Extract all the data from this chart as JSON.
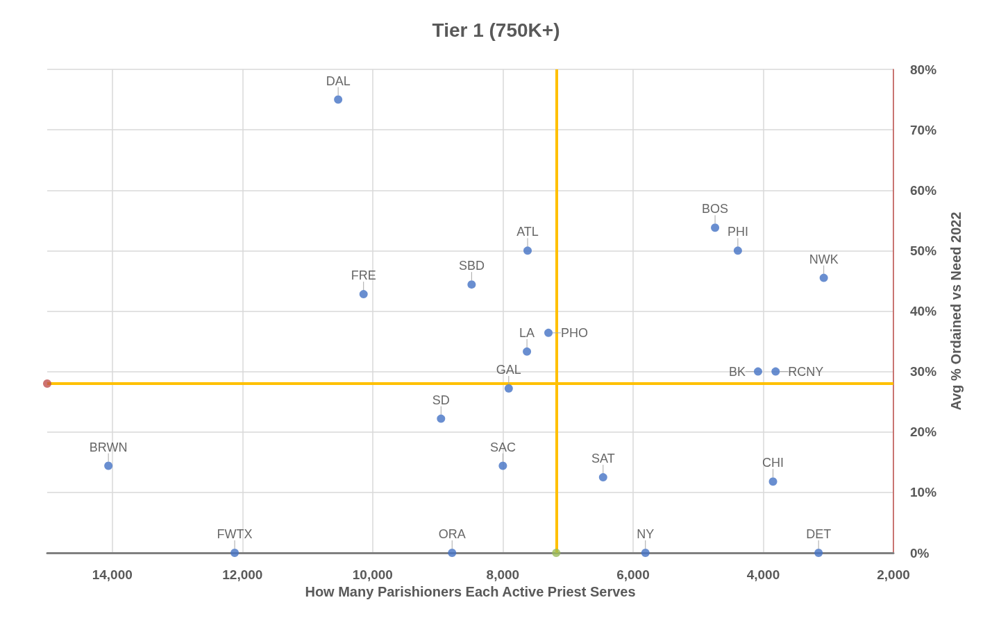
{
  "chart_data": {
    "type": "scatter",
    "title": "Tier 1 (750K+)",
    "xlabel": "How Many Parishioners Each Active Priest Serves",
    "ylabel": "Avg % Ordained vs Need 2022",
    "series": [
      {
        "color": "#4472c4",
        "x": [
          10530,
          10140,
          8480,
          7620,
          7630,
          7300,
          7910,
          8950,
          14060,
          8000,
          6460,
          12120,
          8780,
          5810,
          3150,
          4740,
          4390,
          3070,
          4080,
          3810,
          3850
        ],
        "values": [
          75,
          42.8,
          44.4,
          50,
          33.3,
          36.4,
          27.2,
          22.2,
          14.4,
          14.4,
          12.5,
          0,
          0,
          0,
          0,
          53.8,
          50,
          45.5,
          30,
          30,
          11.8
        ],
        "value_labels": [
          "DAL",
          "FRE",
          "SBD",
          "ATL",
          "LA",
          "PHO",
          "GAL",
          "SD",
          "BRWN",
          "SAC",
          "SAT",
          "FWTX",
          "ORA",
          "NY",
          "DET",
          "BOS",
          "PHI",
          "NWK",
          "BK",
          "RCNY",
          "CHI"
        ]
      },
      {
        "x": [
          15000,
          7180
        ],
        "values": [
          28,
          0
        ],
        "colors": [
          "#c0504d",
          "#9bbb59"
        ]
      }
    ],
    "ref_lines": [
      {
        "axis": "x",
        "value": 7180,
        "color": "#ffc000"
      },
      {
        "axis": "y",
        "value": 28,
        "color": "#ffc000"
      }
    ],
    "xlim": [
      15000,
      2000
    ],
    "ylim": [
      0,
      80
    ],
    "xticks": [
      {
        "value": 14000,
        "label": "14,000"
      },
      {
        "value": 12000,
        "label": "12,000"
      },
      {
        "value": 10000,
        "label": "10,000"
      },
      {
        "value": 8000,
        "label": "8,000"
      },
      {
        "value": 6000,
        "label": "6,000"
      },
      {
        "value": 4000,
        "label": "4,000"
      },
      {
        "value": 2000,
        "label": "2,000"
      }
    ],
    "yticks": [
      {
        "value": 0,
        "label": "0%"
      },
      {
        "value": 10,
        "label": "10%"
      },
      {
        "value": 20,
        "label": "20%"
      },
      {
        "value": 30,
        "label": "30%"
      },
      {
        "value": 40,
        "label": "40%"
      },
      {
        "value": 50,
        "label": "50%"
      },
      {
        "value": 60,
        "label": "60%"
      },
      {
        "value": 70,
        "label": "70%"
      },
      {
        "value": 80,
        "label": "80%"
      }
    ],
    "grid": true,
    "marker": "circle"
  }
}
